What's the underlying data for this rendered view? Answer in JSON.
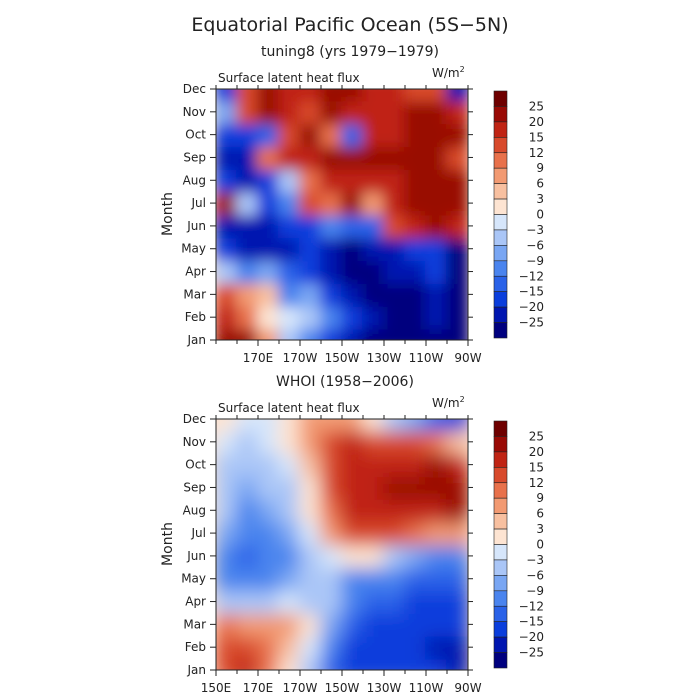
{
  "figure": {
    "title": "Equatorial Pacific Ocean (5S−5N)"
  },
  "chart_data": [
    {
      "type": "heatmap",
      "subtitle": "tuning8 (yrs 1979−1979)",
      "panel_label": "Surface latent heat flux",
      "units": "W/m",
      "units_sup": "2",
      "ylabel": "Month",
      "xlabel": "",
      "y_categories": [
        "Jan",
        "Feb",
        "Mar",
        "Apr",
        "May",
        "Jun",
        "Jul",
        "Aug",
        "Sep",
        "Oct",
        "Nov",
        "Dec"
      ],
      "x_ticks": [
        "170E",
        "170W",
        "150W",
        "130W",
        "110W",
        "90W"
      ],
      "x_range_deg_east": [
        150,
        270
      ],
      "x_tick_values": [
        170,
        190,
        210,
        230,
        250,
        270
      ],
      "colorbar_levels": [
        "25",
        "20",
        "15",
        "12",
        "9",
        "6",
        "3",
        "0",
        "−3",
        "−6",
        "−9",
        "−12",
        "−15",
        "−20",
        "−25"
      ],
      "z_month_values": [
        [
          24,
          20,
          6,
          -4,
          -12,
          -18,
          -22,
          -26,
          -26,
          -26,
          -26,
          -26
        ],
        [
          16,
          10,
          2,
          -2,
          -6,
          -12,
          -20,
          -24,
          -26,
          -26,
          -25,
          -26
        ],
        [
          12,
          8,
          4,
          -10,
          -8,
          -16,
          -24,
          -26,
          -26,
          -26,
          -25,
          -26
        ],
        [
          -6,
          -10,
          -8,
          -14,
          -18,
          -24,
          -26,
          -26,
          -24,
          -22,
          -20,
          -26
        ],
        [
          -18,
          -22,
          -24,
          -22,
          -20,
          -24,
          -26,
          -24,
          -22,
          -20,
          -20,
          -26
        ],
        [
          -22,
          -24,
          -22,
          -20,
          -18,
          -12,
          -14,
          -14,
          12,
          16,
          20,
          18
        ],
        [
          22,
          -6,
          -16,
          -12,
          14,
          10,
          20,
          6,
          16,
          22,
          22,
          20
        ],
        [
          -20,
          -22,
          -18,
          -6,
          10,
          16,
          18,
          18,
          18,
          20,
          22,
          20
        ],
        [
          -24,
          -22,
          10,
          16,
          18,
          22,
          22,
          20,
          22,
          20,
          22,
          14
        ],
        [
          -18,
          -20,
          -14,
          14,
          20,
          10,
          -14,
          16,
          16,
          20,
          22,
          22
        ],
        [
          -8,
          12,
          20,
          16,
          14,
          22,
          18,
          18,
          16,
          20,
          22,
          16
        ],
        [
          -20,
          12,
          20,
          18,
          16,
          20,
          22,
          18,
          16,
          12,
          14,
          -22
        ]
      ]
    },
    {
      "type": "heatmap",
      "subtitle": "WHOI (1958−2006)",
      "panel_label": "Surface latent heat flux",
      "units": "W/m",
      "units_sup": "2",
      "ylabel": "Month",
      "xlabel": "",
      "y_categories": [
        "Jan",
        "Feb",
        "Mar",
        "Apr",
        "May",
        "Jun",
        "Jul",
        "Aug",
        "Sep",
        "Oct",
        "Nov",
        "Dec"
      ],
      "x_ticks": [
        "150E",
        "170E",
        "170W",
        "150W",
        "130W",
        "110W",
        "90W"
      ],
      "x_range_deg_east": [
        150,
        270
      ],
      "x_tick_values": [
        150,
        170,
        190,
        210,
        230,
        250,
        270
      ],
      "colorbar_levels": [
        "25",
        "20",
        "15",
        "12",
        "9",
        "6",
        "3",
        "0",
        "−3",
        "−6",
        "−9",
        "−12",
        "−15",
        "−20",
        "−25"
      ],
      "z_month_values": [
        [
          14,
          16,
          10,
          2,
          -6,
          -14,
          -18,
          -20,
          -20,
          -20,
          -20,
          -22
        ],
        [
          12,
          14,
          10,
          4,
          -2,
          -12,
          -16,
          -18,
          -20,
          -20,
          -22,
          -22
        ],
        [
          10,
          8,
          6,
          6,
          0,
          -8,
          -14,
          -16,
          -16,
          -18,
          -18,
          -20
        ],
        [
          -4,
          -6,
          -4,
          -2,
          -4,
          -6,
          -12,
          -14,
          -14,
          -16,
          -16,
          -18
        ],
        [
          -10,
          -10,
          -12,
          -8,
          -6,
          -4,
          -10,
          -10,
          -12,
          -14,
          -14,
          -14
        ],
        [
          -12,
          -14,
          -12,
          -10,
          -6,
          -2,
          2,
          0,
          -6,
          -8,
          -10,
          -10
        ],
        [
          -8,
          -12,
          -10,
          -8,
          -2,
          6,
          12,
          12,
          12,
          10,
          8,
          8
        ],
        [
          -6,
          -10,
          -8,
          -6,
          0,
          10,
          16,
          18,
          18,
          18,
          18,
          20
        ],
        [
          -4,
          -8,
          -6,
          -4,
          2,
          14,
          18,
          18,
          20,
          20,
          20,
          24
        ],
        [
          -4,
          -4,
          -4,
          -2,
          4,
          14,
          18,
          18,
          18,
          18,
          20,
          18
        ],
        [
          -2,
          -4,
          -2,
          0,
          8,
          14,
          16,
          14,
          14,
          12,
          10,
          4
        ],
        [
          0,
          -2,
          -2,
          2,
          6,
          8,
          6,
          2,
          -4,
          -8,
          -14,
          -20
        ]
      ]
    }
  ],
  "colormap": {
    "bounds": [
      -25,
      -20,
      -15,
      -12,
      -9,
      -6,
      -3,
      0,
      3,
      6,
      9,
      12,
      15,
      20,
      25
    ],
    "colors": [
      "#00007e",
      "#0016b0",
      "#0a3edc",
      "#2a62e8",
      "#4a84ee",
      "#79a6f3",
      "#aac6f7",
      "#d6e6fb",
      "#fde4d2",
      "#f8c0a0",
      "#f29a72",
      "#e8714b",
      "#d84a2c",
      "#c02414",
      "#990a05",
      "#6e0000"
    ]
  }
}
